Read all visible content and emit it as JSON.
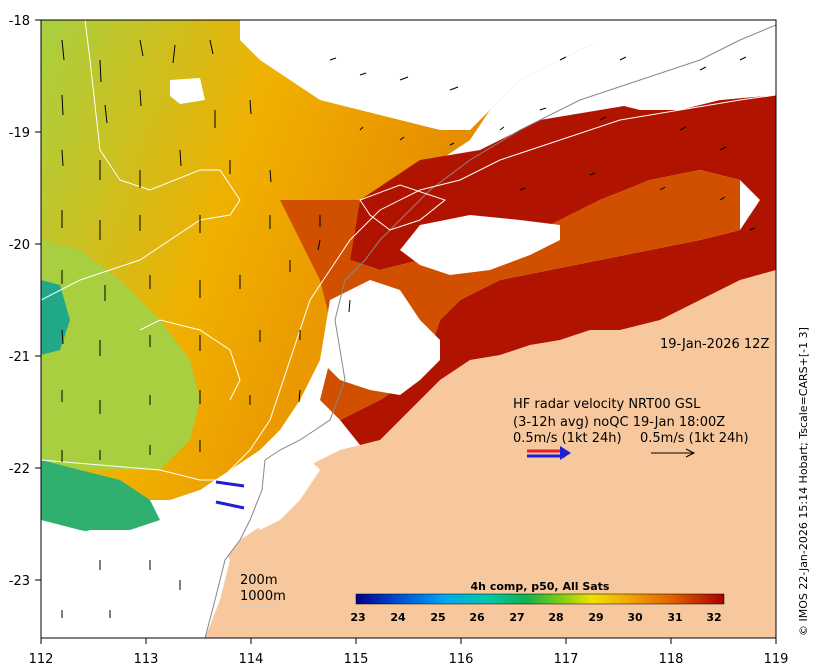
{
  "map": {
    "x_ticks": [
      "112",
      "113",
      "114",
      "115",
      "116",
      "117",
      "118",
      "119"
    ],
    "y_ticks": [
      "-18",
      "-19",
      "-20",
      "-21",
      "-22",
      "-23"
    ],
    "colors": {
      "ocean": "#f7c89d",
      "land": "#ffffff",
      "frame": "#000000",
      "coast": "#888888"
    }
  },
  "timestamp": "19-Jan-2026 12Z",
  "hf_radar": {
    "line1": "HF radar velocity  NRT00 GSL",
    "line2": "(3-12h avg) noQC 19-Jan 18:00Z",
    "scale_left": "0.5m/s (1kt 24h)",
    "scale_right": "0.5m/s (1kt 24h)",
    "arrow_colors": {
      "red": "#e8202a",
      "blue": "#1f1fd6",
      "black": "#000000"
    }
  },
  "isobaths": {
    "shallow": "200m",
    "deep": "1000m"
  },
  "colorbar": {
    "title": "4h comp, p50, All Sats",
    "ticks": [
      "23",
      "24",
      "25",
      "26",
      "27",
      "28",
      "29",
      "30",
      "31",
      "32"
    ],
    "colors": [
      "#00008b",
      "#0040d0",
      "#0090f0",
      "#00c0c0",
      "#00b060",
      "#40c020",
      "#c0d000",
      "#f0b000",
      "#e07000",
      "#b80000"
    ]
  },
  "credit": "© IMOS 22-Jan-2026 15:14 Hobart; Tscale=CARS+[-1 3]"
}
